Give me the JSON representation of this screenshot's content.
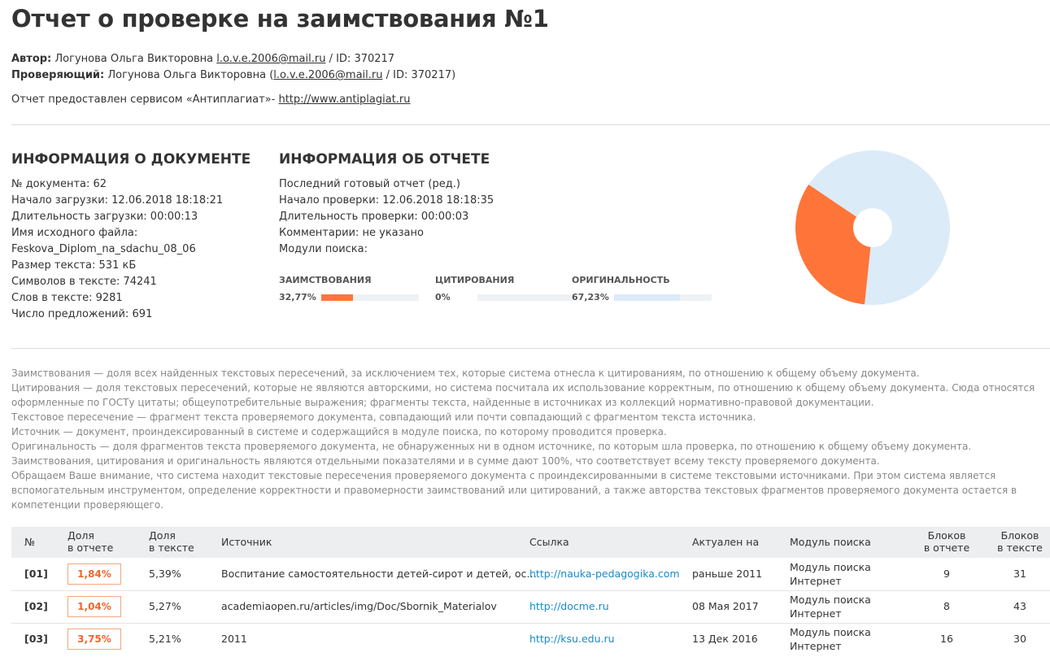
{
  "title": "Отчет о проверке на заимствования №1",
  "author": {
    "label": "Автор:",
    "name": "Логунова Ольга Викторовна",
    "email": "l.o.v.e.2006@mail.ru",
    "id": "/ ID: 370217"
  },
  "checker": {
    "label": "Проверяющий:",
    "name": "Логунова Ольга Викторовна (",
    "email": "l.o.v.e.2006@mail.ru",
    "id": "/ ID: 370217)"
  },
  "service": {
    "text": "Отчет предоставлен сервисом «Антиплагиат»-",
    "url": "http://www.antiplagiat.ru"
  },
  "doc_info": {
    "heading": "ИНФОРМАЦИЯ О ДОКУМЕНТЕ",
    "lines": [
      "№ документа: 62",
      "Начало загрузки: 12.06.2018 18:18:21",
      "Длительность загрузки: 00:00:13",
      "Имя исходного файла:",
      "Feskova_Diplom_na_sdachu_08_06",
      "Размер текста: 531 кБ",
      "Символов в тексте: 74241",
      "Слов в тексте: 9281",
      "Число предложений: 691"
    ]
  },
  "report_info": {
    "heading": "ИНФОРМАЦИЯ ОБ ОТЧЕТЕ",
    "lines": [
      "Последний готовый отчет (ред.)",
      "Начало проверки: 12.06.2018 18:18:35",
      "Длительность проверки: 00:00:03",
      "Комментарии: не указано",
      "Модули поиска:"
    ]
  },
  "chart_data": {
    "type": "pie",
    "categories": [
      "ЗАИМСТВОВАНИЯ",
      "ЦИТИРОВАНИЯ",
      "ОРИГИНАЛЬНОСТЬ"
    ],
    "values": [
      32.77,
      0,
      67.23
    ],
    "value_labels": [
      "32,77%",
      "0%",
      "67,23%"
    ],
    "colors": [
      "#ff7539",
      "#5bb55d",
      "#dcebf8"
    ]
  },
  "definitions": [
    "Заимствования — доля всех найденных текстовых пересечений, за исключением тех, которые система отнесла к цитированиям, по отношению к общему объему документа.",
    "Цитирования — доля текстовых пересечений, которые не являются авторскими, но система посчитала их использование корректным, по отношению к общему объему документа. Сюда относятся оформленные по ГОСТу цитаты; общеупотребительные выражения; фрагменты текста, найденные в источниках из коллекций нормативно-правовой документации.",
    "Текстовое пересечение — фрагмент текста проверяемого документа, совпадающий или почти совпадающий с фрагментом текста источника.",
    "Источник — документ, проиндексированный в системе и содержащийся в модуле поиска, по которому проводится проверка.",
    "Оригинальность — доля фрагментов текста проверяемого документа, не обнаруженных ни в одном источнике, по которым шла проверка, по отношению к общему объему документа.",
    "Заимствования, цитирования и оригинальность являются отдельными показателями и в сумме дают 100%, что соответствует всему тексту проверяемого документа.",
    "Обращаем Ваше внимание, что система находит текстовые пересечения проверяемого документа с проиндексированными в системе текстовыми источниками. При этом система является вспомогательным инструментом, определение корректности и правомерности заимствований или цитирований, а также авторства текстовых фрагментов проверяемого документа остается в компетенции проверяющего."
  ],
  "table": {
    "header": [
      [
        "№"
      ],
      [
        "Доля",
        "в отчете"
      ],
      [
        "Доля",
        "в тексте"
      ],
      [
        "Источник"
      ],
      [
        "Ссылка"
      ],
      [
        "Актуален на"
      ],
      [
        "Модуль поиска"
      ],
      [
        "Блоков",
        "в отчете"
      ],
      [
        "Блоков",
        "в тексте"
      ]
    ],
    "rows": [
      [
        "[01]",
        "1,84%",
        "5,39%",
        "Воспитание самостоятельности детей-сирот и детей, ос…",
        "http://nauka-pedagogika.com",
        "раньше 2011",
        [
          "Модуль поиска",
          "Интернет"
        ],
        9,
        31
      ],
      [
        "[02]",
        "1,04%",
        "5,27%",
        "academiaopen.ru/articles/img/Doc/Sbornik_Materialov",
        "http://docme.ru",
        "08 Мая 2017",
        [
          "Модуль поиска",
          "Интернет"
        ],
        8,
        43
      ],
      [
        "[03]",
        "3,75%",
        "5,21%",
        "2011",
        "http://ksu.edu.ru",
        "13 Дек 2016",
        [
          "Модуль поиска",
          "Интернет"
        ],
        16,
        30
      ]
    ]
  }
}
